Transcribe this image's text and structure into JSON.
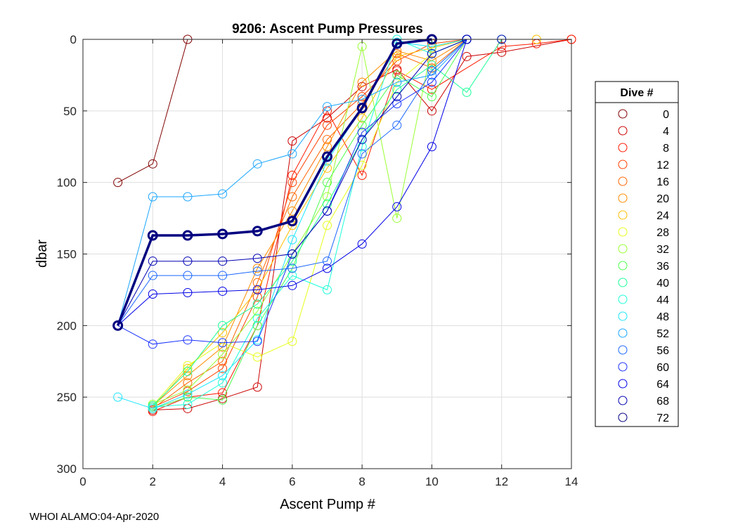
{
  "chart_data": {
    "type": "line",
    "title": "9206: Ascent Pump Pressures",
    "xlabel": "Ascent Pump #",
    "ylabel": "dbar",
    "xlim": [
      0,
      14
    ],
    "ylim": [
      0,
      300
    ],
    "y_reversed": true,
    "grid": true,
    "xticks": [
      0,
      2,
      4,
      6,
      8,
      10,
      12,
      14
    ],
    "yticks": [
      0,
      50,
      100,
      150,
      200,
      250,
      300
    ],
    "legend": {
      "title": "Dive #",
      "position": "right",
      "entries": [
        {
          "label": "0",
          "color": "#800000"
        },
        {
          "label": "4",
          "color": "#cc0000"
        },
        {
          "label": "8",
          "color": "#ff1a00"
        },
        {
          "label": "12",
          "color": "#ff4000"
        },
        {
          "label": "16",
          "color": "#ff6600"
        },
        {
          "label": "20",
          "color": "#ff8c00"
        },
        {
          "label": "24",
          "color": "#ffbf00"
        },
        {
          "label": "28",
          "color": "#e6ff1a"
        },
        {
          "label": "32",
          "color": "#99ff33"
        },
        {
          "label": "36",
          "color": "#4dff4d"
        },
        {
          "label": "40",
          "color": "#1aff99"
        },
        {
          "label": "44",
          "color": "#1affd9"
        },
        {
          "label": "48",
          "color": "#1ae6ff"
        },
        {
          "label": "52",
          "color": "#1aa6ff"
        },
        {
          "label": "56",
          "color": "#1a66ff"
        },
        {
          "label": "60",
          "color": "#1a33ff"
        },
        {
          "label": "64",
          "color": "#0000e6"
        },
        {
          "label": "68",
          "color": "#0000b3"
        },
        {
          "label": "72",
          "color": "#000080"
        }
      ]
    },
    "series": [
      {
        "name": "0",
        "color": "#800000",
        "x": [
          1,
          2,
          3
        ],
        "y": [
          100,
          87,
          0
        ]
      },
      {
        "name": "4",
        "color": "#cc0000",
        "x": [
          2,
          3,
          4,
          5,
          6,
          7,
          8,
          9,
          10,
          11,
          12,
          14
        ],
        "y": [
          259,
          258,
          251,
          243,
          71,
          55,
          33,
          21,
          50,
          12,
          9,
          0
        ]
      },
      {
        "name": "8",
        "color": "#ff1a00",
        "x": [
          2,
          3,
          4,
          5,
          6,
          7,
          8,
          9,
          10,
          12,
          13,
          14
        ],
        "y": [
          260,
          250,
          247,
          200,
          95,
          50,
          95,
          22,
          35,
          5,
          3,
          0
        ]
      },
      {
        "name": "12",
        "color": "#ff4000",
        "x": [
          2,
          3,
          4,
          5,
          6,
          7,
          8,
          9,
          10,
          11
        ],
        "y": [
          257,
          246,
          230,
          180,
          100,
          60,
          40,
          15,
          3,
          0
        ]
      },
      {
        "name": "16",
        "color": "#ff6600",
        "x": [
          2,
          3,
          4,
          5,
          6,
          7,
          8,
          9,
          10,
          11
        ],
        "y": [
          258,
          240,
          225,
          170,
          110,
          70,
          45,
          10,
          20,
          0
        ]
      },
      {
        "name": "20",
        "color": "#ff8c00",
        "x": [
          2,
          3,
          4,
          5,
          6,
          7,
          8,
          9,
          10,
          11
        ],
        "y": [
          256,
          235,
          215,
          160,
          120,
          75,
          30,
          8,
          15,
          0
        ]
      },
      {
        "name": "24",
        "color": "#ffbf00",
        "x": [
          2,
          3,
          4,
          5,
          6,
          7,
          8,
          9,
          10,
          11,
          13
        ],
        "y": [
          257,
          230,
          205,
          175,
          130,
          90,
          55,
          12,
          6,
          0,
          0
        ]
      },
      {
        "name": "28",
        "color": "#e6ff1a",
        "x": [
          2,
          3,
          4,
          5,
          6,
          7,
          8,
          9,
          10,
          11
        ],
        "y": [
          256,
          228,
          212,
          222,
          211,
          130,
          88,
          30,
          10,
          0
        ]
      },
      {
        "name": "32",
        "color": "#99ff33",
        "x": [
          2,
          3,
          4,
          5,
          6,
          7,
          8,
          9,
          10,
          11
        ],
        "y": [
          255,
          245,
          220,
          190,
          150,
          110,
          5,
          125,
          5,
          0
        ]
      },
      {
        "name": "36",
        "color": "#4dff4d",
        "x": [
          2,
          3,
          4,
          5,
          6,
          7,
          8,
          9,
          10,
          11
        ],
        "y": [
          258,
          250,
          252,
          200,
          160,
          100,
          60,
          25,
          40,
          0
        ]
      },
      {
        "name": "40",
        "color": "#1aff99",
        "x": [
          2,
          3,
          4,
          5,
          6,
          7,
          8,
          9,
          10,
          11,
          12
        ],
        "y": [
          256,
          232,
          200,
          185,
          155,
          115,
          70,
          35,
          18,
          37,
          0
        ]
      },
      {
        "name": "44",
        "color": "#1affd9",
        "x": [
          2,
          3,
          4,
          5,
          6,
          7,
          8,
          9,
          10,
          11
        ],
        "y": [
          257,
          255,
          240,
          195,
          165,
          175,
          75,
          0,
          10,
          0
        ]
      },
      {
        "name": "48",
        "color": "#1ae6ff",
        "x": [
          1,
          2,
          3,
          4,
          5,
          6,
          7,
          8,
          9,
          10,
          11
        ],
        "y": [
          250,
          258,
          248,
          235,
          210,
          140,
          85,
          48,
          2,
          5,
          0
        ]
      },
      {
        "name": "52",
        "color": "#1aa6ff",
        "x": [
          1,
          2,
          3,
          4,
          5,
          6,
          7,
          8,
          9,
          10,
          11
        ],
        "y": [
          200,
          110,
          110,
          108,
          87,
          80,
          47,
          42,
          30,
          25,
          0
        ]
      },
      {
        "name": "56",
        "color": "#1a66ff",
        "x": [
          1,
          2,
          3,
          4,
          5,
          6,
          7,
          8,
          9,
          10,
          11
        ],
        "y": [
          200,
          165,
          165,
          165,
          162,
          160,
          155,
          80,
          60,
          22,
          0
        ]
      },
      {
        "name": "60",
        "color": "#1a33ff",
        "x": [
          1,
          2,
          3,
          4,
          5,
          6,
          7,
          8,
          9,
          10,
          11
        ],
        "y": [
          200,
          213,
          210,
          212,
          211,
          150,
          120,
          65,
          45,
          30,
          0
        ]
      },
      {
        "name": "64",
        "color": "#0000e6",
        "x": [
          1,
          2,
          3,
          4,
          5,
          6,
          7,
          8,
          9,
          10,
          11
        ],
        "y": [
          200,
          178,
          177,
          176,
          175,
          172,
          160,
          143,
          117,
          75,
          0
        ]
      },
      {
        "name": "68",
        "color": "#0000b3",
        "x": [
          1,
          2,
          3,
          4,
          5,
          6,
          7,
          8,
          9,
          10,
          11,
          12
        ],
        "y": [
          200,
          155,
          155,
          155,
          153,
          150,
          120,
          70,
          40,
          10,
          0,
          0
        ]
      },
      {
        "name": "72",
        "color": "#000080",
        "x": [
          1,
          2,
          3,
          4,
          5,
          6,
          7,
          8,
          9,
          10
        ],
        "y": [
          200,
          137,
          137,
          136,
          134,
          127,
          82,
          48,
          3,
          0
        ],
        "bold": true
      }
    ],
    "footer": "WHOI ALAMO:04-Apr-2020"
  }
}
